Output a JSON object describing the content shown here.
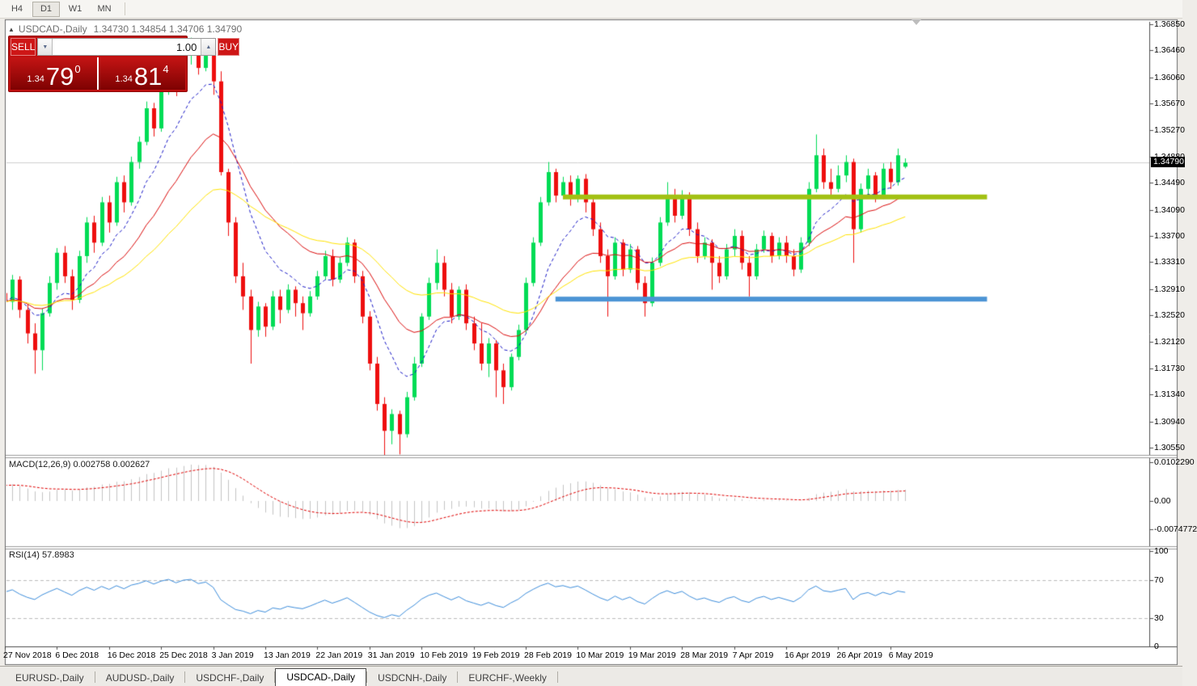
{
  "toolbar": {
    "timeframes": [
      {
        "label": "H4",
        "active": false
      },
      {
        "label": "D1",
        "active": true
      },
      {
        "label": "W1",
        "active": false
      },
      {
        "label": "MN",
        "active": false
      }
    ]
  },
  "chart": {
    "title": {
      "collapse_icon": "▲",
      "symbol": "USDCAD-,Daily",
      "ohlc": "1.34730 1.34854 1.34706 1.34790"
    },
    "trade_panel": {
      "sell_label": "SELL",
      "buy_label": "BUY",
      "volume": "1.00",
      "sell_price": {
        "prefix": "1.34",
        "big": "79",
        "sup": "0"
      },
      "buy_price": {
        "prefix": "1.34",
        "big": "81",
        "sup": "4"
      }
    },
    "price_axis": {
      "ticks": [
        "1.36850",
        "1.36460",
        "1.36060",
        "1.35670",
        "1.35270",
        "1.34880",
        "1.34490",
        "1.34090",
        "1.33700",
        "1.33310",
        "1.32910",
        "1.32520",
        "1.32120",
        "1.31730",
        "1.31340",
        "1.30940",
        "1.30550"
      ],
      "current": "1.34790",
      "current_value": 1.3479
    },
    "time_axis": {
      "labels": [
        "27 Nov 2018",
        "6 Dec 2018",
        "16 Dec 2018",
        "25 Dec 2018",
        "3 Jan 2019",
        "13 Jan 2019",
        "22 Jan 2019",
        "31 Jan 2019",
        "10 Feb 2019",
        "19 Feb 2019",
        "28 Feb 2019",
        "10 Mar 2019",
        "19 Mar 2019",
        "28 Mar 2019",
        "7 Apr 2019",
        "16 Apr 2019",
        "26 Apr 2019",
        "6 May 2019"
      ],
      "bars_per_tick": 7
    },
    "colors": {
      "up_candle": "#00DC55",
      "down_candle": "#EE0E0E",
      "macd_histogram": "#C4C4C4",
      "macd_signal": "#E00000",
      "rsi_line": "#3E8EDC",
      "grid": "#CFCFCF"
    },
    "moving_averages": [
      {
        "period": 9,
        "color": "#1A1AC8",
        "dash": true
      },
      {
        "period": 20,
        "color": "#DC0C0C",
        "dash": false
      },
      {
        "period": 40,
        "color": "#FFE400",
        "dash": false
      }
    ],
    "objects": [
      {
        "name": "resistance-line",
        "price": 1.3428,
        "color": "#A2C113",
        "thickness": 6,
        "bar_start": 75,
        "bar_end": 132
      },
      {
        "name": "support-line",
        "price": 1.3276,
        "color": "#4B94D5",
        "thickness": 6,
        "bar_start": 74,
        "bar_end": 132
      }
    ],
    "candles": [
      [
        1.3285,
        1.33,
        1.3255,
        1.3272
      ],
      [
        1.3272,
        1.3312,
        1.326,
        1.3305
      ],
      [
        1.3305,
        1.331,
        1.3248,
        1.326
      ],
      [
        1.326,
        1.3268,
        1.321,
        1.3225
      ],
      [
        1.3225,
        1.324,
        1.3165,
        1.32
      ],
      [
        1.32,
        1.3262,
        1.317,
        1.3255
      ],
      [
        1.3255,
        1.331,
        1.325,
        1.33
      ],
      [
        1.33,
        1.3352,
        1.329,
        1.3345
      ],
      [
        1.3345,
        1.3355,
        1.33,
        1.331
      ],
      [
        1.331,
        1.332,
        1.326,
        1.3275
      ],
      [
        1.3275,
        1.3348,
        1.327,
        1.334
      ],
      [
        1.334,
        1.3398,
        1.333,
        1.339
      ],
      [
        1.339,
        1.34,
        1.3345,
        1.336
      ],
      [
        1.336,
        1.3428,
        1.3355,
        1.342
      ],
      [
        1.342,
        1.343,
        1.3375,
        1.339
      ],
      [
        1.339,
        1.3458,
        1.3385,
        1.345
      ],
      [
        1.345,
        1.346,
        1.3405,
        1.342
      ],
      [
        1.342,
        1.3488,
        1.3415,
        1.348
      ],
      [
        1.348,
        1.3518,
        1.347,
        1.351
      ],
      [
        1.351,
        1.357,
        1.3505,
        1.356
      ],
      [
        1.356,
        1.3568,
        1.3518,
        1.353
      ],
      [
        1.353,
        1.3592,
        1.3525,
        1.3585
      ],
      [
        1.3585,
        1.3628,
        1.358,
        1.362
      ],
      [
        1.362,
        1.363,
        1.3578,
        1.359
      ],
      [
        1.359,
        1.3648,
        1.3585,
        1.364
      ],
      [
        1.364,
        1.3665,
        1.3625,
        1.3655
      ],
      [
        1.3655,
        1.366,
        1.361,
        1.362
      ],
      [
        1.362,
        1.3662,
        1.3615,
        1.3645
      ],
      [
        1.3645,
        1.3664,
        1.358,
        1.36
      ],
      [
        1.36,
        1.3615,
        1.346,
        1.3465
      ],
      [
        1.3465,
        1.347,
        1.337,
        1.339
      ],
      [
        1.339,
        1.3398,
        1.33,
        1.331
      ],
      [
        1.331,
        1.333,
        1.326,
        1.328
      ],
      [
        1.328,
        1.329,
        1.318,
        1.323
      ],
      [
        1.323,
        1.3272,
        1.322,
        1.3265
      ],
      [
        1.3265,
        1.327,
        1.322,
        1.3235
      ],
      [
        1.3235,
        1.3288,
        1.323,
        1.328
      ],
      [
        1.328,
        1.329,
        1.324,
        1.326
      ],
      [
        1.326,
        1.3298,
        1.3255,
        1.329
      ],
      [
        1.329,
        1.3295,
        1.325,
        1.327
      ],
      [
        1.327,
        1.328,
        1.323,
        1.3255
      ],
      [
        1.3255,
        1.3288,
        1.325,
        1.328
      ],
      [
        1.328,
        1.3318,
        1.3275,
        1.331
      ],
      [
        1.331,
        1.3348,
        1.3305,
        1.334
      ],
      [
        1.334,
        1.335,
        1.3295,
        1.3305
      ],
      [
        1.3305,
        1.3338,
        1.33,
        1.333
      ],
      [
        1.333,
        1.3368,
        1.3325,
        1.336
      ],
      [
        1.336,
        1.3365,
        1.33,
        1.331
      ],
      [
        1.331,
        1.3318,
        1.324,
        1.325
      ],
      [
        1.325,
        1.3258,
        1.317,
        1.318
      ],
      [
        1.318,
        1.319,
        1.311,
        1.312
      ],
      [
        1.312,
        1.313,
        1.304,
        1.308
      ],
      [
        1.308,
        1.3112,
        1.306,
        1.3105
      ],
      [
        1.3105,
        1.311,
        1.3045,
        1.3075
      ],
      [
        1.3075,
        1.3138,
        1.307,
        1.313
      ],
      [
        1.313,
        1.319,
        1.3125,
        1.318
      ],
      [
        1.318,
        1.3255,
        1.3175,
        1.325
      ],
      [
        1.325,
        1.3308,
        1.3245,
        1.33
      ],
      [
        1.33,
        1.335,
        1.329,
        1.333
      ],
      [
        1.333,
        1.334,
        1.328,
        1.329
      ],
      [
        1.329,
        1.33,
        1.324,
        1.325
      ],
      [
        1.325,
        1.3295,
        1.3245,
        1.329
      ],
      [
        1.329,
        1.3298,
        1.323,
        1.324
      ],
      [
        1.324,
        1.325,
        1.32,
        1.321
      ],
      [
        1.321,
        1.324,
        1.317,
        1.318
      ],
      [
        1.318,
        1.3218,
        1.316,
        1.321
      ],
      [
        1.321,
        1.3215,
        1.313,
        1.317
      ],
      [
        1.317,
        1.318,
        1.312,
        1.3145
      ],
      [
        1.3145,
        1.3195,
        1.314,
        1.319
      ],
      [
        1.319,
        1.3238,
        1.3185,
        1.323
      ],
      [
        1.323,
        1.3308,
        1.3225,
        1.33
      ],
      [
        1.33,
        1.3368,
        1.3295,
        1.336
      ],
      [
        1.336,
        1.3428,
        1.3355,
        1.342
      ],
      [
        1.342,
        1.348,
        1.3415,
        1.3465
      ],
      [
        1.3465,
        1.347,
        1.342,
        1.343
      ],
      [
        1.343,
        1.3458,
        1.3425,
        1.345
      ],
      [
        1.345,
        1.346,
        1.3415,
        1.343
      ],
      [
        1.343,
        1.346,
        1.342,
        1.3455
      ],
      [
        1.3455,
        1.3462,
        1.3405,
        1.342
      ],
      [
        1.342,
        1.3428,
        1.337,
        1.338
      ],
      [
        1.338,
        1.339,
        1.333,
        1.334
      ],
      [
        1.334,
        1.335,
        1.325,
        1.331
      ],
      [
        1.331,
        1.3368,
        1.3305,
        1.336
      ],
      [
        1.336,
        1.3365,
        1.331,
        1.332
      ],
      [
        1.332,
        1.3358,
        1.3315,
        1.335
      ],
      [
        1.335,
        1.3355,
        1.329,
        1.33
      ],
      [
        1.33,
        1.331,
        1.325,
        1.327
      ],
      [
        1.327,
        1.3338,
        1.3265,
        1.333
      ],
      [
        1.333,
        1.3398,
        1.3325,
        1.339
      ],
      [
        1.339,
        1.345,
        1.3385,
        1.343
      ],
      [
        1.343,
        1.344,
        1.339,
        1.34
      ],
      [
        1.34,
        1.3438,
        1.3395,
        1.343
      ],
      [
        1.343,
        1.3435,
        1.337,
        1.338
      ],
      [
        1.338,
        1.339,
        1.333,
        1.334
      ],
      [
        1.334,
        1.3368,
        1.3335,
        1.336
      ],
      [
        1.336,
        1.3365,
        1.329,
        1.333
      ],
      [
        1.333,
        1.334,
        1.33,
        1.331
      ],
      [
        1.331,
        1.3358,
        1.3305,
        1.335
      ],
      [
        1.335,
        1.338,
        1.334,
        1.337
      ],
      [
        1.337,
        1.3378,
        1.332,
        1.333
      ],
      [
        1.333,
        1.334,
        1.328,
        1.331
      ],
      [
        1.331,
        1.3358,
        1.3305,
        1.335
      ],
      [
        1.335,
        1.3378,
        1.3345,
        1.337
      ],
      [
        1.337,
        1.3375,
        1.333,
        1.334
      ],
      [
        1.334,
        1.3368,
        1.3335,
        1.336
      ],
      [
        1.336,
        1.337,
        1.333,
        1.334
      ],
      [
        1.334,
        1.335,
        1.331,
        1.332
      ],
      [
        1.332,
        1.3368,
        1.3315,
        1.336
      ],
      [
        1.336,
        1.345,
        1.3355,
        1.344
      ],
      [
        1.344,
        1.3521,
        1.3435,
        1.349
      ],
      [
        1.349,
        1.35,
        1.344,
        1.345
      ],
      [
        1.345,
        1.347,
        1.343,
        1.344
      ],
      [
        1.344,
        1.3475,
        1.3435,
        1.346
      ],
      [
        1.346,
        1.349,
        1.345,
        1.348
      ],
      [
        1.348,
        1.3485,
        1.333,
        1.338
      ],
      [
        1.338,
        1.3448,
        1.3375,
        1.344
      ],
      [
        1.344,
        1.347,
        1.343,
        1.346
      ],
      [
        1.346,
        1.3465,
        1.342,
        1.343
      ],
      [
        1.343,
        1.3478,
        1.3425,
        1.347
      ],
      [
        1.347,
        1.348,
        1.344,
        1.345
      ],
      [
        1.345,
        1.35,
        1.3445,
        1.349
      ],
      [
        1.3473,
        1.34854,
        1.34706,
        1.3479
      ]
    ]
  },
  "macd_panel": {
    "label": "MACD(12,26,9)",
    "values": "0.002758 0.002627",
    "axis": [
      "0.0102290",
      "0.00",
      "-0.0074772"
    ],
    "params": {
      "fast": 12,
      "slow": 26,
      "signal": 9
    }
  },
  "rsi_panel": {
    "label": "RSI(14)",
    "value": "57.8983",
    "axis": [
      "100",
      "70",
      "30",
      "0"
    ],
    "period": 14,
    "levels": [
      70,
      30
    ]
  },
  "tabs": {
    "items": [
      {
        "label": "EURUSD-,Daily",
        "active": false
      },
      {
        "label": "AUDUSD-,Daily",
        "active": false
      },
      {
        "label": "USDCHF-,Daily",
        "active": false
      },
      {
        "label": "USDCAD-,Daily",
        "active": true
      },
      {
        "label": "USDCNH-,Daily",
        "active": false
      },
      {
        "label": "EURCHF-,Weekly",
        "active": false
      }
    ]
  }
}
